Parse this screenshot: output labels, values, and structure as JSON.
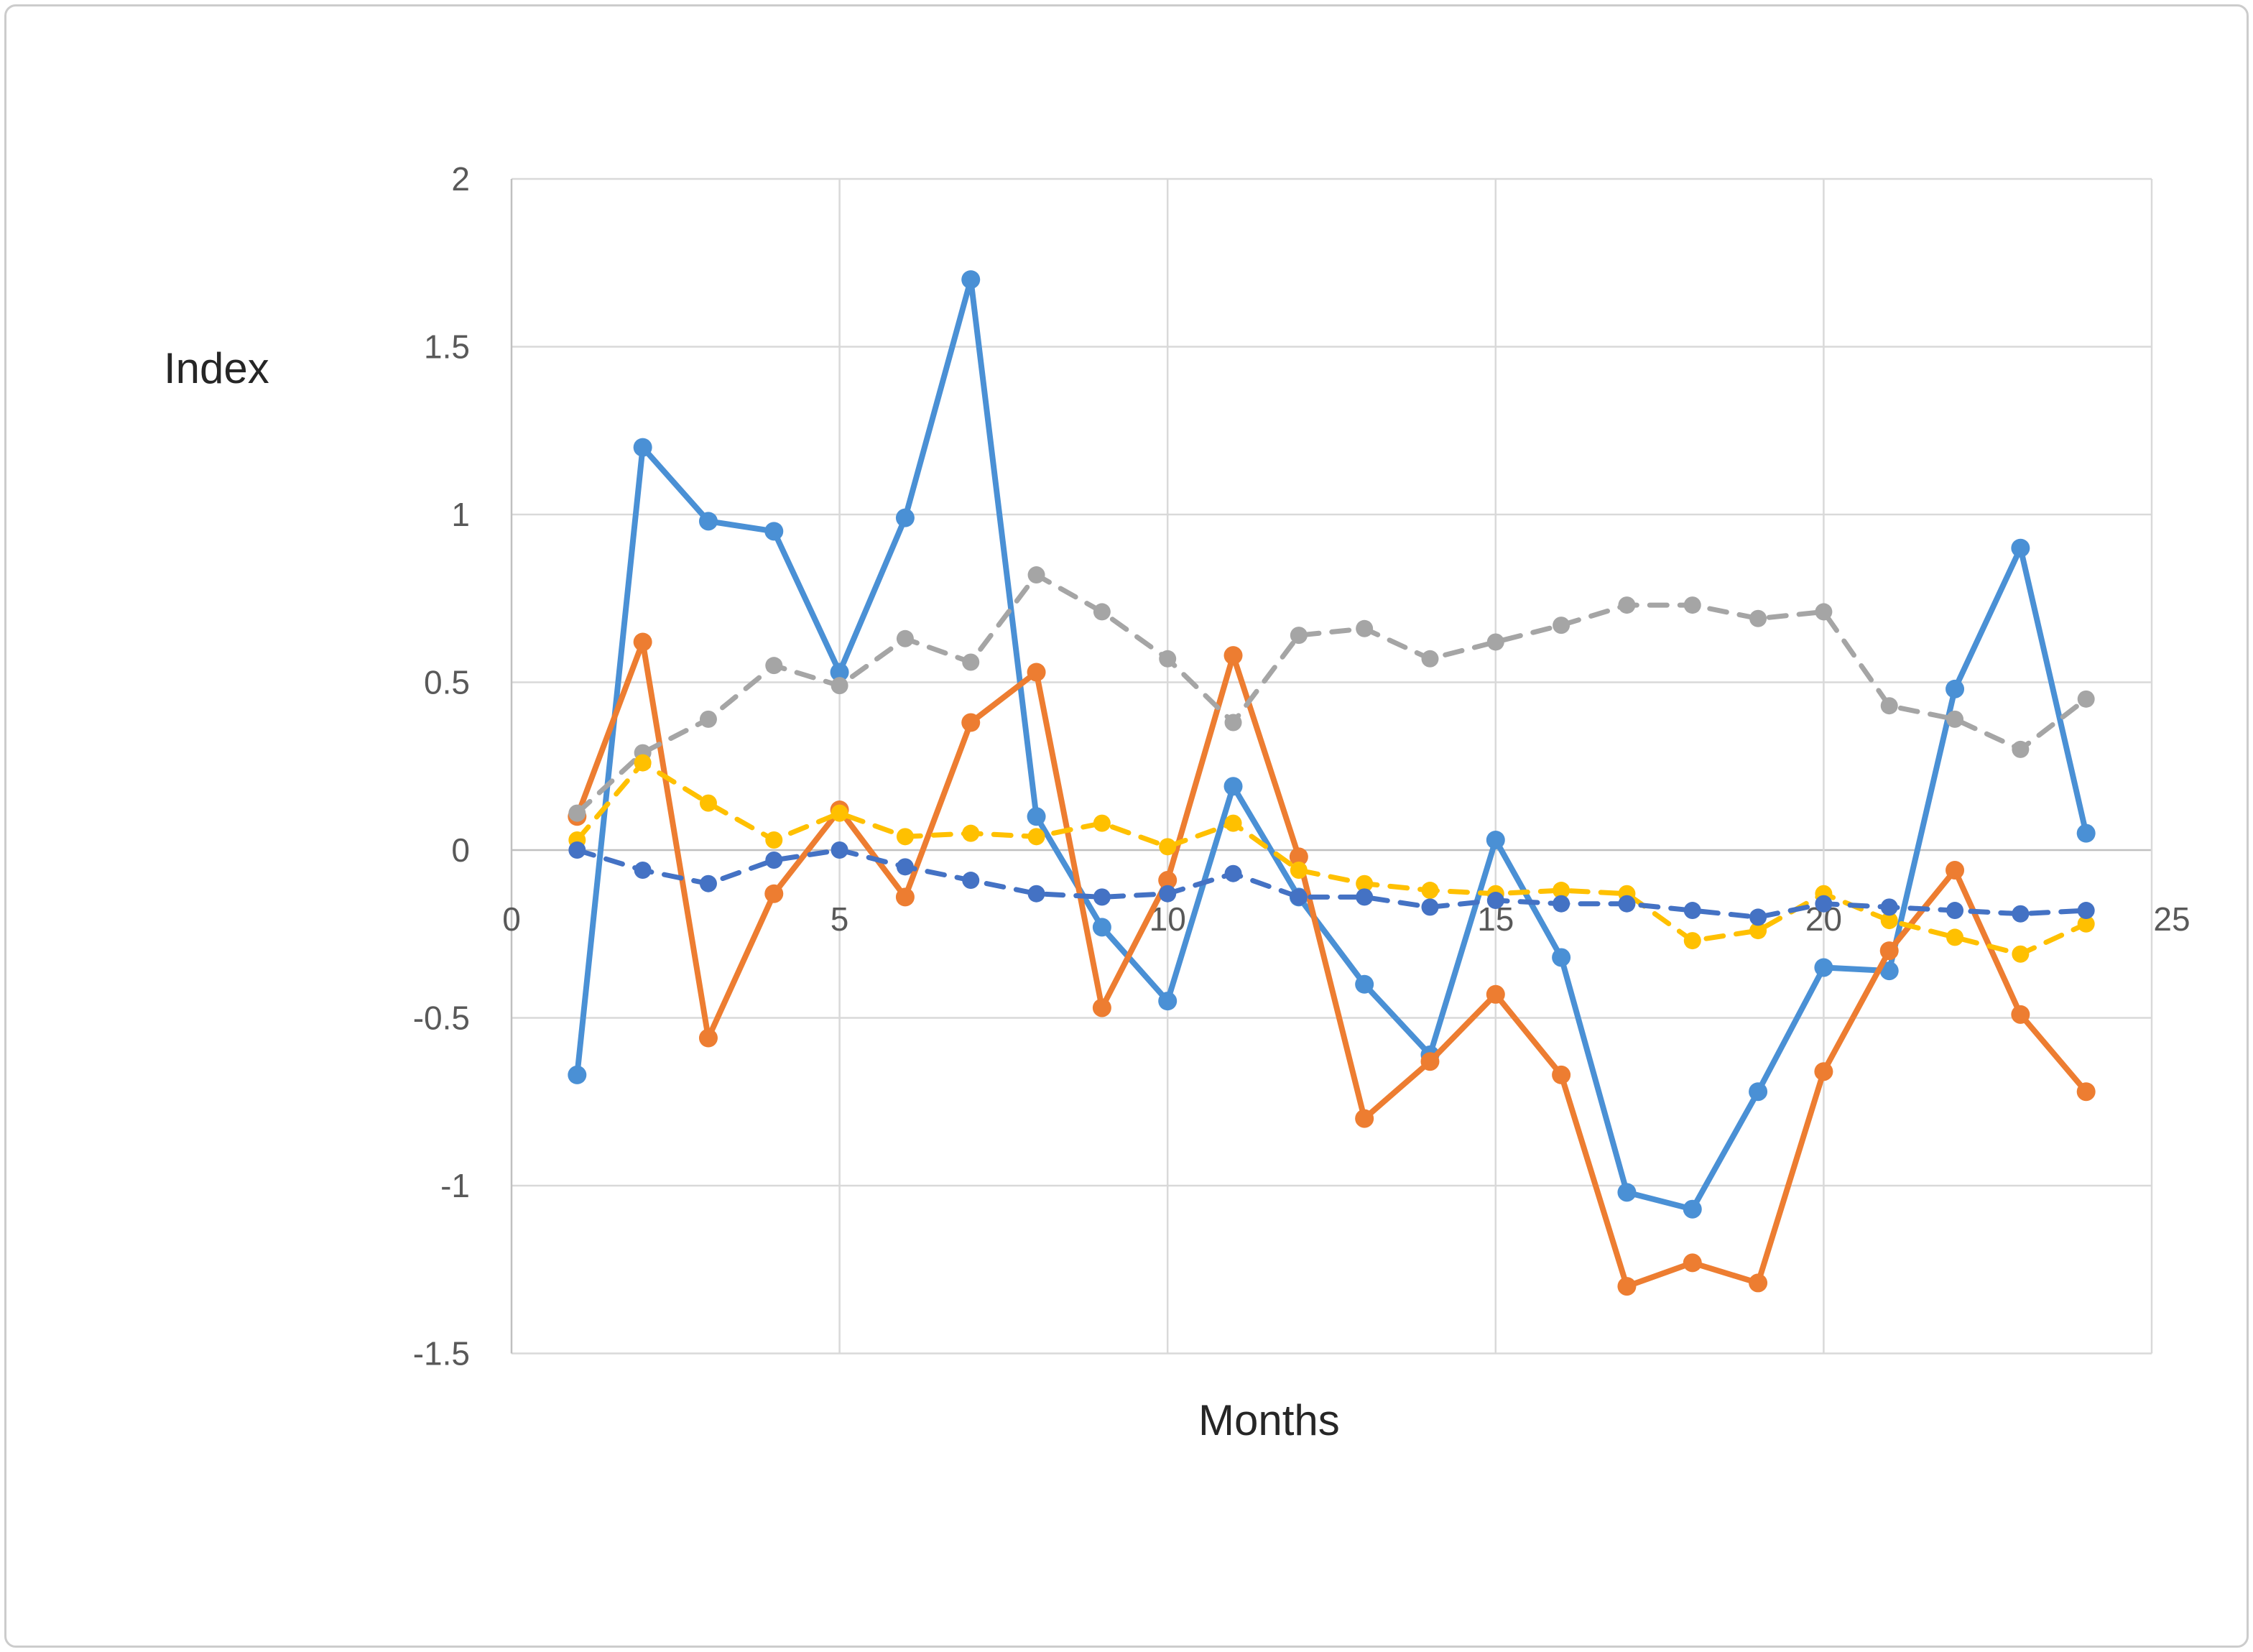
{
  "axes": {
    "y_title": "Index",
    "x_title": "Months",
    "y_tick_labels": [
      "2",
      "1.5",
      "1",
      "0.5",
      "0",
      "-0.5",
      "-1",
      "-1.5"
    ],
    "y_tick_values": [
      2,
      1.5,
      1,
      0.5,
      0,
      -0.5,
      -1,
      -1.5
    ],
    "x_tick_labels": [
      "0",
      "5",
      "10",
      "15",
      "20",
      "25"
    ],
    "x_tick_values": [
      0,
      5,
      10,
      15,
      20,
      25
    ]
  },
  "colors": {
    "blue_solid": "#4A90D5",
    "orange_solid": "#ED7D31",
    "gray_dashed": "#A5A5A5",
    "gold_dashed": "#FFC000",
    "darkblue_dashed": "#4472C4",
    "gridline": "#D9D9D9",
    "axis_line": "#C0C0C0",
    "tick_text": "#595959",
    "label_text": "#262626"
  },
  "chart_data": {
    "type": "line",
    "title": "",
    "xlabel": "Months",
    "ylabel": "Index",
    "xlim": [
      0,
      25
    ],
    "ylim": [
      -1.5,
      2
    ],
    "grid": true,
    "legend": "none",
    "x": [
      1,
      2,
      3,
      4,
      5,
      6,
      7,
      8,
      9,
      10,
      11,
      12,
      13,
      14,
      15,
      16,
      17,
      18,
      19,
      20,
      21,
      22,
      23,
      24
    ],
    "series": [
      {
        "name": "blue-solid",
        "color": "#4A90D5",
        "style": "solid",
        "values": [
          -0.67,
          1.2,
          0.98,
          0.95,
          0.53,
          0.99,
          1.7,
          0.1,
          -0.23,
          -0.45,
          0.19,
          -0.14,
          -0.4,
          -0.61,
          0.03,
          -0.32,
          -1.02,
          -1.07,
          -0.72,
          -0.35,
          -0.36,
          0.48,
          0.9,
          0.05
        ]
      },
      {
        "name": "orange-solid",
        "color": "#ED7D31",
        "style": "solid",
        "values": [
          0.1,
          0.62,
          -0.56,
          -0.13,
          0.12,
          -0.14,
          0.38,
          0.53,
          -0.47,
          -0.09,
          0.58,
          -0.02,
          -0.8,
          -0.63,
          -0.43,
          -0.67,
          -1.3,
          -1.23,
          -1.29,
          -0.66,
          -0.3,
          -0.06,
          -0.49,
          -0.72
        ]
      },
      {
        "name": "gray-dashed",
        "color": "#A5A5A5",
        "style": "dashed",
        "values": [
          0.11,
          0.29,
          0.39,
          0.55,
          0.49,
          0.63,
          0.56,
          0.82,
          0.71,
          0.57,
          0.38,
          0.64,
          0.66,
          0.57,
          0.62,
          0.67,
          0.73,
          0.73,
          0.69,
          0.71,
          0.43,
          0.39,
          0.3,
          0.45
        ]
      },
      {
        "name": "gold-dashed",
        "color": "#FFC000",
        "style": "dashed",
        "values": [
          0.03,
          0.26,
          0.14,
          0.03,
          0.11,
          0.04,
          0.05,
          0.04,
          0.08,
          0.01,
          0.08,
          -0.06,
          -0.1,
          -0.12,
          -0.13,
          -0.12,
          -0.13,
          -0.27,
          -0.24,
          -0.13,
          -0.21,
          -0.26,
          -0.31,
          -0.22
        ]
      },
      {
        "name": "darkblue-dashed",
        "color": "#4472C4",
        "style": "dashed",
        "values": [
          0.0,
          -0.06,
          -0.1,
          -0.03,
          0.0,
          -0.05,
          -0.09,
          -0.13,
          -0.14,
          -0.13,
          -0.07,
          -0.14,
          -0.14,
          -0.17,
          -0.15,
          -0.16,
          -0.16,
          -0.18,
          -0.2,
          -0.16,
          -0.17,
          -0.18,
          -0.19,
          -0.18
        ]
      }
    ]
  }
}
